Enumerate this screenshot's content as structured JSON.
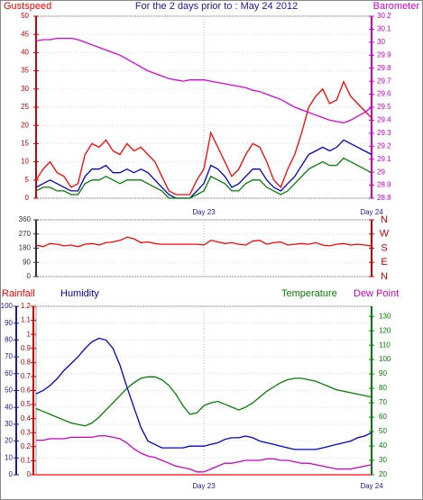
{
  "chart_data": [
    {
      "type": "line",
      "title": "For the 2 days prior to : May 24 2012",
      "title_color": "#1a1aa6",
      "x": [
        0,
        1,
        2,
        3,
        4,
        5,
        6,
        7,
        8,
        9,
        10,
        11,
        12,
        13,
        14,
        15,
        16,
        17,
        18,
        19,
        20,
        21,
        22,
        23,
        24,
        25,
        26,
        27,
        28,
        29,
        30,
        31,
        32,
        33,
        34,
        35,
        36,
        37,
        38,
        39,
        40,
        41,
        42,
        43,
        44,
        45,
        46,
        47,
        48
      ],
      "xlim": [
        0,
        48
      ],
      "xticks": [
        {
          "value": 24,
          "label": "Day 23"
        },
        {
          "value": 48,
          "label": "Day 24"
        }
      ],
      "ylim": [
        0,
        50
      ],
      "yticks": [
        0,
        5,
        10,
        15,
        20,
        25,
        30,
        35,
        40,
        45,
        50
      ],
      "y_color": "#cc0000",
      "y2lim": [
        28.8,
        30.2
      ],
      "y2ticks": [
        28.8,
        28.9,
        29,
        29.1,
        29.2,
        29.3,
        29.4,
        29.5,
        29.6,
        29.7,
        29.8,
        29.9,
        30,
        30.1,
        30.2
      ],
      "y2_color": "#cc00cc",
      "grid": true,
      "series": [
        {
          "name": "Gustspeed",
          "color": "#ff0000",
          "values": [
            5,
            8,
            10,
            7,
            6,
            3,
            4,
            12,
            15,
            14,
            16,
            13,
            12,
            15,
            13,
            14,
            12,
            10,
            6,
            2,
            1,
            1,
            1,
            5,
            8,
            18,
            14,
            10,
            6,
            8,
            12,
            15,
            14,
            10,
            5,
            3,
            8,
            12,
            18,
            25,
            28,
            30,
            26,
            27,
            32,
            28,
            26,
            24,
            22
          ]
        },
        {
          "color": "#0000cc",
          "values": [
            3,
            4,
            5,
            4,
            3,
            2,
            2,
            6,
            8,
            8,
            9,
            7,
            7,
            8,
            7,
            8,
            7,
            5,
            3,
            1,
            0,
            0,
            0,
            2,
            4,
            9,
            8,
            6,
            3,
            4,
            6,
            8,
            8,
            5,
            3,
            2,
            4,
            6,
            9,
            12,
            13,
            14,
            13,
            14,
            16,
            15,
            14,
            13,
            12
          ]
        },
        {
          "color": "#008000",
          "values": [
            2,
            3,
            3,
            2,
            2,
            1,
            1,
            4,
            5,
            5,
            6,
            5,
            4,
            5,
            5,
            5,
            4,
            3,
            2,
            0,
            0,
            0,
            0,
            1,
            2,
            6,
            5,
            4,
            2,
            2,
            4,
            5,
            5,
            3,
            2,
            1,
            2,
            4,
            6,
            8,
            9,
            10,
            9,
            9,
            11,
            10,
            9,
            8,
            7
          ]
        },
        {
          "name": "Barometer",
          "color": "#dd00dd",
          "axis": "y2",
          "values": [
            30.01,
            30.02,
            30.02,
            30.03,
            30.03,
            30.03,
            30.02,
            30.0,
            29.98,
            29.96,
            29.94,
            29.92,
            29.9,
            29.87,
            29.84,
            29.81,
            29.78,
            29.76,
            29.74,
            29.72,
            29.71,
            29.7,
            29.71,
            29.71,
            29.71,
            29.7,
            29.69,
            29.68,
            29.67,
            29.66,
            29.65,
            29.63,
            29.62,
            29.6,
            29.58,
            29.56,
            29.53,
            29.5,
            29.48,
            29.46,
            29.44,
            29.42,
            29.4,
            29.39,
            29.38,
            29.4,
            29.43,
            29.46,
            29.5
          ]
        }
      ]
    },
    {
      "type": "line",
      "x": [
        0,
        1,
        2,
        3,
        4,
        5,
        6,
        7,
        8,
        9,
        10,
        11,
        12,
        13,
        14,
        15,
        16,
        17,
        18,
        19,
        20,
        21,
        22,
        23,
        24,
        25,
        26,
        27,
        28,
        29,
        30,
        31,
        32,
        33,
        34,
        35,
        36,
        37,
        38,
        39,
        40,
        41,
        42,
        43,
        44,
        45,
        46,
        47,
        48
      ],
      "xlim": [
        0,
        48
      ],
      "xticks": [
        {
          "value": 24,
          "label": ""
        },
        {
          "value": 48,
          "label": ""
        }
      ],
      "ylim": [
        0,
        360
      ],
      "yticks": [
        0,
        90,
        180,
        270,
        360
      ],
      "y_color": "#333333",
      "y2lim": [
        0,
        360
      ],
      "y2ticks": [
        {
          "value": 360,
          "label": "N"
        },
        {
          "value": 270,
          "label": "W"
        },
        {
          "value": 180,
          "label": "S"
        },
        {
          "value": 90,
          "label": "E"
        },
        {
          "value": 0,
          "label": "N"
        }
      ],
      "y2_color": "#cc0000",
      "grid": true,
      "series": [
        {
          "color": "#ff0000",
          "values": [
            200,
            190,
            210,
            205,
            195,
            200,
            190,
            205,
            210,
            200,
            215,
            220,
            230,
            250,
            240,
            215,
            220,
            210,
            205,
            205,
            205,
            205,
            205,
            205,
            200,
            230,
            220,
            210,
            215,
            205,
            200,
            225,
            230,
            205,
            215,
            220,
            200,
            205,
            210,
            205,
            215,
            200,
            195,
            205,
            210,
            200,
            205,
            200,
            195
          ]
        }
      ]
    },
    {
      "type": "line",
      "x": [
        0,
        1,
        2,
        3,
        4,
        5,
        6,
        7,
        8,
        9,
        10,
        11,
        12,
        13,
        14,
        15,
        16,
        17,
        18,
        19,
        20,
        21,
        22,
        23,
        24,
        25,
        26,
        27,
        28,
        29,
        30,
        31,
        32,
        33,
        34,
        35,
        36,
        37,
        38,
        39,
        40,
        41,
        42,
        43,
        44,
        45,
        46,
        47,
        48
      ],
      "xlim": [
        0,
        48
      ],
      "xticks": [
        {
          "value": 24,
          "label": "Day 23"
        },
        {
          "value": 48,
          "label": "Day 24"
        }
      ],
      "ylim": [
        0,
        100
      ],
      "yticks": [
        0,
        10,
        20,
        30,
        40,
        50,
        60,
        70,
        80,
        90,
        100
      ],
      "y_color": "#1a1aa6",
      "y3lim": [
        0,
        1.2
      ],
      "y3ticks": [
        0,
        0.1,
        0.2,
        0.3,
        0.4,
        0.5,
        0.6,
        0.7,
        0.8,
        0.9,
        1,
        1.1,
        1.2
      ],
      "y3_color": "#cc0000",
      "y2lim": [
        20,
        137
      ],
      "y2ticks": [
        20,
        30,
        40,
        50,
        60,
        70,
        80,
        90,
        100,
        110,
        120,
        130
      ],
      "y2_color": "#008000",
      "grid": true,
      "series": [
        {
          "name": "Rainfall",
          "color": "#ff0000",
          "axis": "y3",
          "values": [
            0,
            0,
            0,
            0,
            0,
            0,
            0,
            0,
            0,
            0,
            0,
            0,
            0,
            0,
            0,
            0,
            0,
            0,
            0,
            0,
            0,
            0,
            0,
            0,
            0,
            0,
            0,
            0,
            0,
            0,
            0,
            0,
            0,
            0,
            0,
            0,
            0,
            0,
            0,
            0,
            0,
            0,
            0,
            0,
            0,
            0,
            0,
            0,
            0
          ]
        },
        {
          "name": "Humidity",
          "color": "#0000cc",
          "values": [
            48,
            50,
            53,
            57,
            62,
            66,
            70,
            75,
            79,
            81,
            80,
            75,
            65,
            52,
            40,
            28,
            20,
            18,
            16,
            16,
            16,
            16,
            17,
            17,
            17,
            18,
            19,
            21,
            22,
            22,
            23,
            22,
            20,
            19,
            18,
            17,
            16,
            15,
            15,
            15,
            15,
            16,
            17,
            18,
            19,
            20,
            22,
            23,
            25
          ]
        },
        {
          "name": "Temperature",
          "color": "#008000",
          "axis": "y2",
          "values": [
            66,
            64,
            62,
            60,
            58,
            56,
            55,
            54,
            56,
            60,
            65,
            70,
            75,
            80,
            84,
            87,
            88,
            88,
            86,
            82,
            76,
            68,
            62,
            63,
            68,
            70,
            71,
            69,
            67,
            65,
            67,
            70,
            74,
            78,
            81,
            84,
            86,
            87,
            87,
            86,
            85,
            83,
            81,
            79,
            78,
            77,
            76,
            75,
            74
          ]
        },
        {
          "name": "Dew Point",
          "color": "#cc00cc",
          "axis": "y2",
          "values": [
            44,
            44,
            45,
            45,
            45,
            46,
            46,
            46,
            46,
            47,
            47,
            46,
            45,
            42,
            38,
            35,
            33,
            32,
            30,
            28,
            26,
            25,
            24,
            22,
            22,
            24,
            26,
            28,
            28,
            29,
            30,
            30,
            30,
            31,
            31,
            30,
            30,
            29,
            28,
            28,
            27,
            26,
            25,
            24,
            24,
            24,
            25,
            26,
            27
          ]
        }
      ]
    }
  ]
}
